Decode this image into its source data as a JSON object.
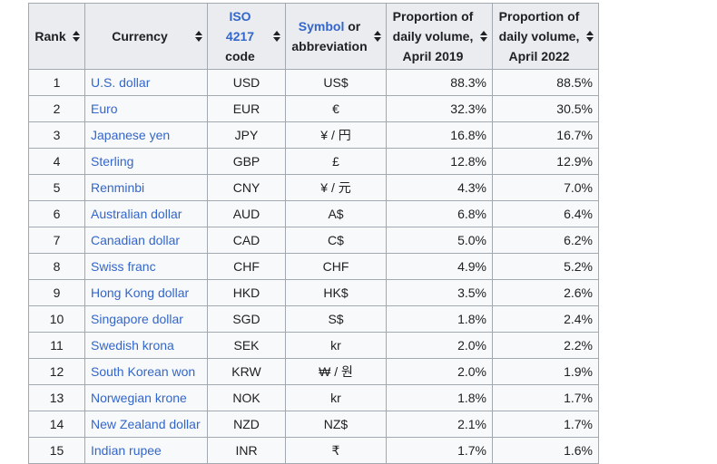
{
  "table": {
    "headers": {
      "rank": "Rank",
      "currency": "Currency",
      "iso_link": "ISO 4217",
      "iso_rest": "code",
      "symbol_link": "Symbol",
      "symbol_rest1": " or",
      "symbol_rest2": "abbreviation",
      "p2019_line1": "Proportion of",
      "p2019_line2": "daily volume,",
      "p2019_line3": "April 2019",
      "p2022_line1": "Proportion of",
      "p2022_line2": "daily volume,",
      "p2022_line3": "April 2022"
    },
    "rows": [
      {
        "rank": "1",
        "currency": "U.S. dollar",
        "iso": "USD",
        "symbol": "US$",
        "p2019": "88.3%",
        "p2022": "88.5%"
      },
      {
        "rank": "2",
        "currency": "Euro",
        "iso": "EUR",
        "symbol": "€",
        "p2019": "32.3%",
        "p2022": "30.5%"
      },
      {
        "rank": "3",
        "currency": "Japanese yen",
        "iso": "JPY",
        "symbol": "¥ / 円",
        "p2019": "16.8%",
        "p2022": "16.7%"
      },
      {
        "rank": "4",
        "currency": "Sterling",
        "iso": "GBP",
        "symbol": "£",
        "p2019": "12.8%",
        "p2022": "12.9%"
      },
      {
        "rank": "5",
        "currency": "Renminbi",
        "iso": "CNY",
        "symbol": "¥ / 元",
        "p2019": "4.3%",
        "p2022": "7.0%"
      },
      {
        "rank": "6",
        "currency": "Australian dollar",
        "iso": "AUD",
        "symbol": "A$",
        "p2019": "6.8%",
        "p2022": "6.4%"
      },
      {
        "rank": "7",
        "currency": "Canadian dollar",
        "iso": "CAD",
        "symbol": "C$",
        "p2019": "5.0%",
        "p2022": "6.2%"
      },
      {
        "rank": "8",
        "currency": "Swiss franc",
        "iso": "CHF",
        "symbol": "CHF",
        "p2019": "4.9%",
        "p2022": "5.2%"
      },
      {
        "rank": "9",
        "currency": "Hong Kong dollar",
        "iso": "HKD",
        "symbol": "HK$",
        "p2019": "3.5%",
        "p2022": "2.6%"
      },
      {
        "rank": "10",
        "currency": "Singapore dollar",
        "iso": "SGD",
        "symbol": "S$",
        "p2019": "1.8%",
        "p2022": "2.4%"
      },
      {
        "rank": "11",
        "currency": "Swedish krona",
        "iso": "SEK",
        "symbol": "kr",
        "p2019": "2.0%",
        "p2022": "2.2%"
      },
      {
        "rank": "12",
        "currency": "South Korean won",
        "iso": "KRW",
        "symbol": "₩ / 원",
        "p2019": "2.0%",
        "p2022": "1.9%"
      },
      {
        "rank": "13",
        "currency": "Norwegian krone",
        "iso": "NOK",
        "symbol": "kr",
        "p2019": "1.8%",
        "p2022": "1.7%"
      },
      {
        "rank": "14",
        "currency": "New Zealand dollar",
        "iso": "NZD",
        "symbol": "NZ$",
        "p2019": "2.1%",
        "p2022": "1.7%"
      },
      {
        "rank": "15",
        "currency": "Indian rupee",
        "iso": "INR",
        "symbol": "₹",
        "p2019": "1.7%",
        "p2022": "1.6%"
      }
    ]
  },
  "colors": {
    "link": "#3366cc",
    "header_bg": "#eaecf0",
    "cell_bg": "#f8f9fa",
    "border": "#a2a9b1"
  }
}
